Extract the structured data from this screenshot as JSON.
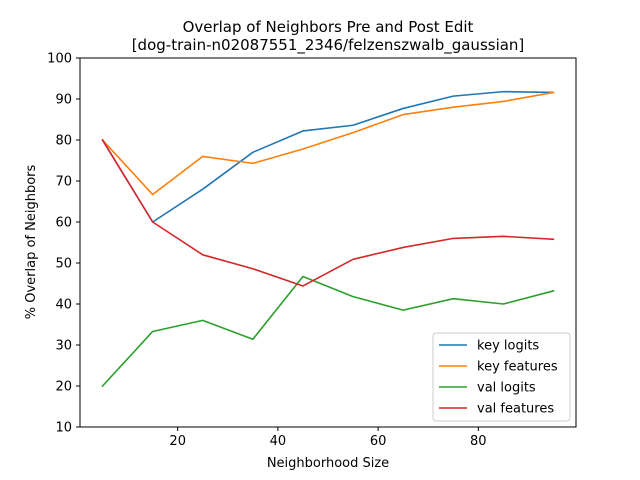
{
  "chart_data": {
    "type": "line",
    "title_line1": "Overlap of Neighbors Pre and Post Edit",
    "title_line2": "[dog-train-n02087551_2346/felzenszwalb_gaussian]",
    "xlabel": "Neighborhood Size",
    "ylabel": "% Overlap of Neighbors",
    "xlim": [
      0.5,
      99.5
    ],
    "ylim": [
      10,
      100
    ],
    "xticks": [
      20,
      40,
      60,
      80
    ],
    "yticks": [
      10,
      20,
      30,
      40,
      50,
      60,
      70,
      80,
      90,
      100
    ],
    "grid": false,
    "legend_position": "lower-right",
    "series": [
      {
        "name": "key logits",
        "color": "#1f77b4",
        "x": [
          5,
          15,
          25,
          35,
          45,
          55,
          65,
          75,
          85,
          95
        ],
        "values": [
          80,
          60,
          68,
          77,
          82.2,
          83.6,
          87.7,
          90.7,
          91.8,
          91.6
        ]
      },
      {
        "name": "key features",
        "color": "#ff7f0e",
        "x": [
          5,
          15,
          25,
          35,
          45,
          55,
          65,
          75,
          85,
          95
        ],
        "values": [
          80,
          66.7,
          76,
          74.3,
          77.8,
          81.8,
          86.2,
          88.0,
          89.4,
          91.6
        ]
      },
      {
        "name": "val logits",
        "color": "#2ca02c",
        "x": [
          5,
          15,
          25,
          35,
          45,
          55,
          65,
          75,
          85,
          95
        ],
        "values": [
          20,
          33.3,
          36,
          31.4,
          46.7,
          41.8,
          38.5,
          41.3,
          40,
          43.2
        ]
      },
      {
        "name": "val features",
        "color": "#d62728",
        "x": [
          5,
          15,
          25,
          35,
          45,
          55,
          65,
          75,
          85,
          95
        ],
        "values": [
          80,
          60,
          52,
          48.6,
          44.4,
          50.9,
          53.8,
          56,
          56.5,
          55.8
        ]
      }
    ]
  }
}
